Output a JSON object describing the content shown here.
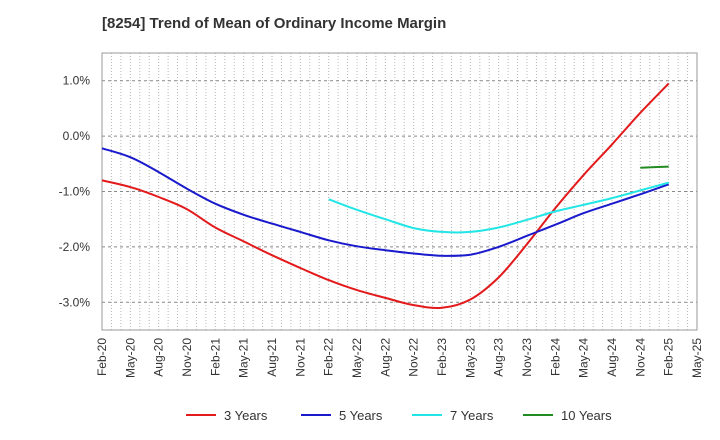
{
  "chart_data": {
    "type": "line",
    "title": "[8254]  Trend of Mean of Ordinary Income Margin",
    "xlabel": "",
    "ylabel": "",
    "x": [
      "Feb-20",
      "May-20",
      "Aug-20",
      "Nov-20",
      "Feb-21",
      "May-21",
      "Aug-21",
      "Nov-21",
      "Feb-22",
      "May-22",
      "Aug-22",
      "Nov-22",
      "Feb-23",
      "May-23",
      "Aug-23",
      "Nov-23",
      "Feb-24",
      "May-24",
      "Aug-24",
      "Nov-24",
      "Feb-25",
      "May-25"
    ],
    "ylim": [
      -3.5,
      1.5
    ],
    "yticks": [
      1.0,
      0.0,
      -1.0,
      -2.0,
      -3.0
    ],
    "ytick_labels": [
      "1.0%",
      "0.0%",
      "-1.0%",
      "-2.0%",
      "-3.0%"
    ],
    "grid": true,
    "legend_position": "bottom",
    "series": [
      {
        "name": "3 Years",
        "color": "#e31a1c",
        "values": [
          -0.8,
          -0.92,
          -1.1,
          -1.32,
          -1.65,
          -1.9,
          -2.15,
          -2.38,
          -2.6,
          -2.78,
          -2.92,
          -3.05,
          -3.1,
          -2.95,
          -2.55,
          -1.95,
          -1.3,
          -0.7,
          -0.15,
          0.42,
          0.95,
          null
        ]
      },
      {
        "name": "5 Years",
        "color": "#1a1acd",
        "values": [
          -0.22,
          -0.38,
          -0.65,
          -0.95,
          -1.22,
          -1.42,
          -1.58,
          -1.73,
          -1.88,
          -1.99,
          -2.06,
          -2.12,
          -2.16,
          -2.14,
          -2.0,
          -1.8,
          -1.6,
          -1.39,
          -1.22,
          -1.05,
          -0.87,
          null
        ]
      },
      {
        "name": "7 Years",
        "color": "#22e5e5",
        "values": [
          null,
          null,
          null,
          null,
          null,
          null,
          null,
          null,
          -1.14,
          -1.33,
          -1.5,
          -1.66,
          -1.73,
          -1.73,
          -1.65,
          -1.51,
          -1.36,
          -1.24,
          -1.12,
          -0.98,
          -0.84,
          null
        ]
      },
      {
        "name": "10 Years",
        "color": "#228b22",
        "values": [
          null,
          null,
          null,
          null,
          null,
          null,
          null,
          null,
          null,
          null,
          null,
          null,
          null,
          null,
          null,
          null,
          null,
          null,
          null,
          -0.57,
          -0.55,
          null
        ]
      }
    ]
  }
}
